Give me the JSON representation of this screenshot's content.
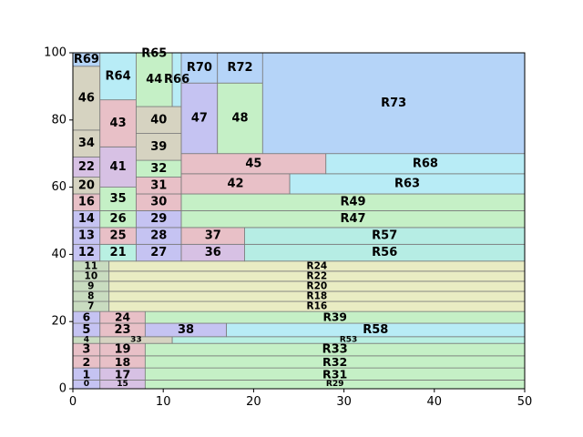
{
  "chart_data": {
    "type": "treemap",
    "xlim": [
      0,
      50
    ],
    "ylim": [
      0,
      100
    ],
    "xticks": [
      0,
      10,
      20,
      30,
      40,
      50
    ],
    "yticks": [
      0,
      20,
      40,
      60,
      80,
      100
    ],
    "grid": false,
    "colors": {
      "green": "#c3ebc6",
      "blue": "#b5d4f8",
      "purple": "#c5c3f2",
      "pink": "#e8c0c7",
      "tan": "#d6d3c1",
      "cyan": "#b8ecf6",
      "mint": "#b9f0e2",
      "lime": "#c5f0c6",
      "yellow": "#e9ecc3",
      "lavender": "#d7c1e4",
      "sage": "#c9dcc0",
      "teal": "#b6ede4"
    },
    "rects": [
      {
        "label": "0",
        "x0": 0,
        "x1": 3,
        "y0": 0,
        "y1": 2.6,
        "color": "purple"
      },
      {
        "label": "1",
        "x0": 0,
        "x1": 3,
        "y0": 2.6,
        "y1": 6.2,
        "color": "purple"
      },
      {
        "label": "2",
        "x0": 0,
        "x1": 3,
        "y0": 6.2,
        "y1": 9.8,
        "color": "pink"
      },
      {
        "label": "3",
        "x0": 0,
        "x1": 3,
        "y0": 9.8,
        "y1": 13.5,
        "color": "pink"
      },
      {
        "label": "4",
        "x0": 0,
        "x1": 3,
        "y0": 13.5,
        "y1": 15.5,
        "color": "sage"
      },
      {
        "label": "5",
        "x0": 0,
        "x1": 3,
        "y0": 15.5,
        "y1": 19.5,
        "color": "purple"
      },
      {
        "label": "6",
        "x0": 0,
        "x1": 3,
        "y0": 19.5,
        "y1": 23.0,
        "color": "purple"
      },
      {
        "label": "7",
        "x0": 0,
        "x1": 4,
        "y0": 23.0,
        "y1": 23.0,
        "color": "sage"
      },
      {
        "label": "15",
        "x0": 3,
        "x1": 8,
        "y0": 0,
        "y1": 2.6,
        "color": "lavender"
      },
      {
        "label": "17",
        "x0": 3,
        "x1": 8,
        "y0": 2.6,
        "y1": 6.2,
        "color": "lavender"
      },
      {
        "label": "18",
        "x0": 3,
        "x1": 8,
        "y0": 6.2,
        "y1": 9.8,
        "color": "pink"
      },
      {
        "label": "19",
        "x0": 3,
        "x1": 8,
        "y0": 9.8,
        "y1": 13.5,
        "color": "pink"
      },
      {
        "label": "R29",
        "x0": 8,
        "x1": 50,
        "y0": 0,
        "y1": 2.6,
        "color": "lime"
      },
      {
        "label": "R31",
        "x0": 8,
        "x1": 50,
        "y0": 2.6,
        "y1": 6.2,
        "color": "lime"
      },
      {
        "label": "R32",
        "x0": 8,
        "x1": 50,
        "y0": 6.2,
        "y1": 9.8,
        "color": "lime"
      },
      {
        "label": "R33",
        "x0": 8,
        "x1": 50,
        "y0": 9.8,
        "y1": 13.5,
        "color": "lime"
      },
      {
        "label": "33",
        "x0": 3,
        "x1": 11,
        "y0": 13.5,
        "y1": 15.5,
        "color": "tan"
      },
      {
        "label": "R53",
        "x0": 11,
        "x1": 50,
        "y0": 13.5,
        "y1": 15.5,
        "color": "mint"
      },
      {
        "label": "23",
        "x0": 3,
        "x1": 8,
        "y0": 15.5,
        "y1": 19.5,
        "color": "pink"
      },
      {
        "label": "38",
        "x0": 8,
        "x1": 17,
        "y0": 15.5,
        "y1": 19.5,
        "color": "purple"
      },
      {
        "label": "R58",
        "x0": 17,
        "x1": 50,
        "y0": 15.5,
        "y1": 19.5,
        "color": "cyan"
      },
      {
        "label": "24",
        "x0": 3,
        "x1": 8,
        "y0": 19.5,
        "y1": 23.0,
        "color": "pink"
      },
      {
        "label": "R39",
        "x0": 8,
        "x1": 50,
        "y0": 19.5,
        "y1": 23.0,
        "color": "lime"
      },
      {
        "label": "7 ",
        "x0": 0,
        "x1": 4,
        "y0": 23.0,
        "y1": 23.0,
        "color": "sage"
      }
    ],
    "rects_upper_band": [
      {
        "label": "7",
        "x0": 0,
        "x1": 4,
        "y0": 23.0,
        "y1": 26.0,
        "color": "sage"
      },
      {
        "label": "8",
        "x0": 0,
        "x1": 4,
        "y0": 26.0,
        "y1": 29.0,
        "color": "sage"
      },
      {
        "label": "9",
        "x0": 0,
        "x1": 4,
        "y0": 29.0,
        "y1": 32.0,
        "color": "sage"
      },
      {
        "label": "10",
        "x0": 0,
        "x1": 4,
        "y0": 32.0,
        "y1": 35.0,
        "color": "sage"
      },
      {
        "label": "11",
        "x0": 0,
        "x1": 4,
        "y0": 35.0,
        "y1": 38.0,
        "color": "sage"
      },
      {
        "label": "R16",
        "x0": 4,
        "x1": 50,
        "y0": 23.0,
        "y1": 26.0,
        "color": "yellow"
      },
      {
        "label": "R18",
        "x0": 4,
        "x1": 50,
        "y0": 26.0,
        "y1": 29.0,
        "color": "yellow"
      },
      {
        "label": "R20",
        "x0": 4,
        "x1": 50,
        "y0": 29.0,
        "y1": 32.0,
        "color": "yellow"
      },
      {
        "label": "R22",
        "x0": 4,
        "x1": 50,
        "y0": 32.0,
        "y1": 35.0,
        "color": "yellow"
      },
      {
        "label": "R24",
        "x0": 4,
        "x1": 50,
        "y0": 35.0,
        "y1": 38.0,
        "color": "yellow"
      },
      {
        "label": "12",
        "x0": 0,
        "x1": 3,
        "y0": 38.0,
        "y1": 43.0,
        "color": "purple"
      },
      {
        "label": "13",
        "x0": 0,
        "x1": 3,
        "y0": 43.0,
        "y1": 48.0,
        "color": "purple"
      },
      {
        "label": "14",
        "x0": 0,
        "x1": 3,
        "y0": 48.0,
        "y1": 53.0,
        "color": "purple"
      },
      {
        "label": "16",
        "x0": 0,
        "x1": 3,
        "y0": 53.0,
        "y1": 58.0,
        "color": "pink"
      },
      {
        "label": "20",
        "x0": 0,
        "x1": 3,
        "y0": 58.0,
        "y1": 63.0,
        "color": "tan"
      },
      {
        "label": "22",
        "x0": 0,
        "x1": 3,
        "y0": 63.0,
        "y1": 69.0,
        "color": "lavender"
      },
      {
        "label": "34",
        "x0": 0,
        "x1": 3,
        "y0": 69.0,
        "y1": 77.0,
        "color": "tan"
      },
      {
        "label": "46",
        "x0": 0,
        "x1": 3,
        "y0": 77.0,
        "y1": 96.0,
        "color": "tan"
      },
      {
        "label": "R69",
        "x0": 0,
        "x1": 3,
        "y0": 96.0,
        "y1": 100,
        "color": "blue"
      },
      {
        "label": "21",
        "x0": 3,
        "x1": 7,
        "y0": 38.0,
        "y1": 43.0,
        "color": "mint"
      },
      {
        "label": "25",
        "x0": 3,
        "x1": 7,
        "y0": 43.0,
        "y1": 48.0,
        "color": "pink"
      },
      {
        "label": "26",
        "x0": 3,
        "x1": 7,
        "y0": 48.0,
        "y1": 53.0,
        "color": "lime"
      },
      {
        "label": "35",
        "x0": 3,
        "x1": 7,
        "y0": 53.0,
        "y1": 60.0,
        "color": "lime"
      },
      {
        "label": "41",
        "x0": 3,
        "x1": 7,
        "y0": 60.0,
        "y1": 72.0,
        "color": "lavender"
      },
      {
        "label": "43",
        "x0": 3,
        "x1": 7,
        "y0": 72.0,
        "y1": 86.0,
        "color": "pink"
      },
      {
        "label": "R64",
        "x0": 3,
        "x1": 7,
        "y0": 86.0,
        "y1": 100,
        "color": "cyan"
      },
      {
        "label": "27",
        "x0": 7,
        "x1": 12,
        "y0": 38.0,
        "y1": 43.0,
        "color": "purple"
      },
      {
        "label": "28",
        "x0": 7,
        "x1": 12,
        "y0": 43.0,
        "y1": 48.0,
        "color": "purple"
      },
      {
        "label": "29",
        "x0": 7,
        "x1": 12,
        "y0": 48.0,
        "y1": 53.0,
        "color": "purple"
      },
      {
        "label": "30",
        "x0": 7,
        "x1": 12,
        "y0": 53.0,
        "y1": 58.0,
        "color": "pink"
      },
      {
        "label": "31",
        "x0": 7,
        "x1": 12,
        "y0": 58.0,
        "y1": 63.0,
        "color": "pink"
      },
      {
        "label": "32",
        "x0": 7,
        "x1": 12,
        "y0": 63.0,
        "y1": 68.0,
        "color": "lime"
      },
      {
        "label": "39",
        "x0": 7,
        "x1": 12,
        "y0": 68.0,
        "y1": 76.0,
        "color": "tan"
      },
      {
        "label": "40",
        "x0": 7,
        "x1": 12,
        "y0": 76.0,
        "y1": 84.0,
        "color": "tan"
      },
      {
        "label": "44",
        "x0": 7,
        "x1": 11,
        "y0": 84.0,
        "y1": 100,
        "color": "lime"
      },
      {
        "label": "R65",
        "x0": 7,
        "x1": 11,
        "y0": 100,
        "y1": 100,
        "color": "lime"
      },
      {
        "label": "R66",
        "x0": 11,
        "x1": 12,
        "y0": 84.0,
        "y1": 100,
        "color": "cyan"
      },
      {
        "label": "36",
        "x0": 12,
        "x1": 19,
        "y0": 38.0,
        "y1": 43.0,
        "color": "lavender"
      },
      {
        "label": "R56",
        "x0": 19,
        "x1": 50,
        "y0": 38.0,
        "y1": 43.0,
        "color": "teal"
      },
      {
        "label": "37",
        "x0": 12,
        "x1": 19,
        "y0": 43.0,
        "y1": 48.0,
        "color": "pink"
      },
      {
        "label": "R57",
        "x0": 19,
        "x1": 50,
        "y0": 43.0,
        "y1": 48.0,
        "color": "teal"
      },
      {
        "label": "R47",
        "x0": 12,
        "x1": 50,
        "y0": 48.0,
        "y1": 53.0,
        "color": "lime"
      },
      {
        "label": "R49",
        "x0": 12,
        "x1": 50,
        "y0": 53.0,
        "y1": 58.0,
        "color": "lime"
      },
      {
        "label": "42",
        "x0": 12,
        "x1": 24,
        "y0": 58.0,
        "y1": 64.0,
        "color": "pink"
      },
      {
        "label": "R63",
        "x0": 24,
        "x1": 50,
        "y0": 58.0,
        "y1": 64.0,
        "color": "cyan"
      },
      {
        "label": "45",
        "x0": 12,
        "x1": 28,
        "y0": 64.0,
        "y1": 70.0,
        "color": "pink"
      },
      {
        "label": "R68",
        "x0": 28,
        "x1": 50,
        "y0": 64.0,
        "y1": 70.0,
        "color": "cyan"
      },
      {
        "label": "47",
        "x0": 12,
        "x1": 16,
        "y0": 70.0,
        "y1": 91.0,
        "color": "purple"
      },
      {
        "label": "48",
        "x0": 16,
        "x1": 21,
        "y0": 70.0,
        "y1": 91.0,
        "color": "lime"
      },
      {
        "label": "R70",
        "x0": 12,
        "x1": 16,
        "y0": 91.0,
        "y1": 100,
        "color": "blue"
      },
      {
        "label": "R72",
        "x0": 16,
        "x1": 21,
        "y0": 91.0,
        "y1": 100,
        "color": "blue"
      },
      {
        "label": "R73",
        "x0": 21,
        "x1": 50,
        "y0": 70.0,
        "y1": 100,
        "color": "blue"
      }
    ]
  }
}
